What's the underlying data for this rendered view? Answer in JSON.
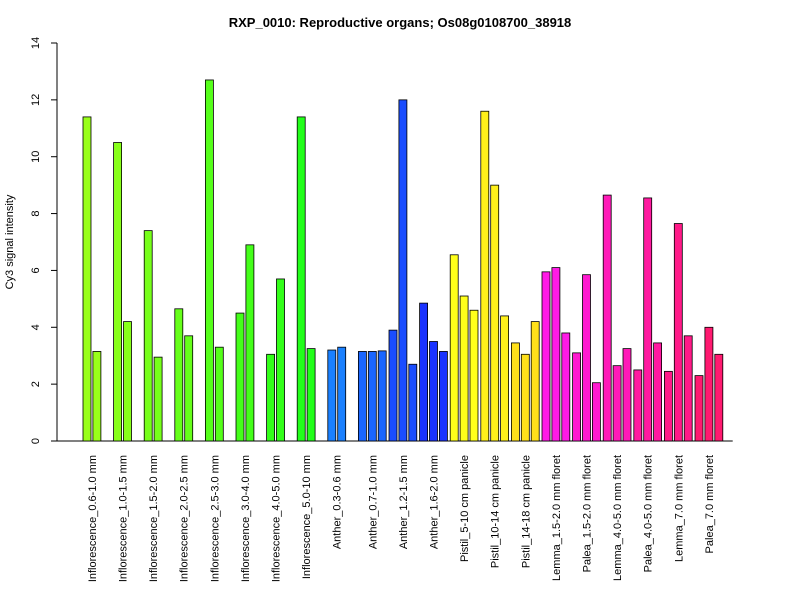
{
  "chart_data": {
    "type": "bar",
    "title": "RXP_0010: Reproductive organs; Os08g0108700_38918",
    "ylabel": "Cy3 signal intensity",
    "xlabel": "",
    "ylim": [
      0,
      14
    ],
    "yticks": [
      0,
      2,
      4,
      6,
      8,
      10,
      12,
      14
    ],
    "grid": false,
    "legend": "none",
    "groups": [
      {
        "label": "Inflorescence_0.6-1.0 mm",
        "color": "#99FF1A",
        "values": [
          11.4,
          3.15
        ]
      },
      {
        "label": "Inflorescence_1.0-1.5 mm",
        "color": "#88FF1A",
        "values": [
          10.5,
          4.2
        ]
      },
      {
        "label": "Inflorescence_1.5-2.0 mm",
        "color": "#77FF1A",
        "values": [
          7.4,
          2.95
        ]
      },
      {
        "label": "Inflorescence_2.0-2.5 mm",
        "color": "#66FF1A",
        "values": [
          4.65,
          3.7
        ]
      },
      {
        "label": "Inflorescence_2.5-3.0 mm",
        "color": "#55FF1A",
        "values": [
          12.7,
          3.3
        ]
      },
      {
        "label": "Inflorescence_3.0-4.0 mm",
        "color": "#44FF1A",
        "values": [
          4.5,
          6.9
        ]
      },
      {
        "label": "Inflorescence_4.0-5.0 mm",
        "color": "#33FF1A",
        "values": [
          3.05,
          5.7
        ]
      },
      {
        "label": "Inflorescence_5.0-10 mm",
        "color": "#22FF1A",
        "values": [
          11.4,
          3.25
        ]
      },
      {
        "label": "Anther_0.3-0.6 mm",
        "color": "#1A80FF",
        "values": [
          3.2,
          3.3
        ]
      },
      {
        "label": "Anther_0.7-1.0 mm",
        "color": "#1A66FF",
        "values": [
          3.15,
          3.15,
          3.17
        ]
      },
      {
        "label": "Anther_1.2-1.5 mm",
        "color": "#1A4DFF",
        "values": [
          3.9,
          12.0,
          2.7
        ]
      },
      {
        "label": "Anther_1.6-2.0 mm",
        "color": "#1A33FF",
        "values": [
          4.85,
          3.5,
          3.15
        ]
      },
      {
        "label": "Pistil_5-10 cm panicle",
        "color": "#FFFF1A",
        "values": [
          6.55,
          5.1,
          4.6
        ]
      },
      {
        "label": "Pistil_10-14 cm panicle",
        "color": "#FFF01A",
        "values": [
          11.6,
          9.0,
          4.4
        ]
      },
      {
        "label": "Pistil_14-18 cm panicle",
        "color": "#FFE01A",
        "values": [
          3.45,
          3.05,
          4.2
        ]
      },
      {
        "label": "Lemma_1.5-2.0 mm floret",
        "color": "#FF1AE6",
        "values": [
          5.95,
          6.1,
          3.8
        ]
      },
      {
        "label": "Palea_1.5-2.0 mm floret",
        "color": "#FF1AD0",
        "values": [
          3.1,
          5.85,
          2.05
        ]
      },
      {
        "label": "Lemma_4.0-5.0 mm floret",
        "color": "#FF1AB8",
        "values": [
          8.65,
          2.65,
          3.25
        ]
      },
      {
        "label": "Palea_4.0-5.0 mm floret",
        "color": "#FF1AA0",
        "values": [
          2.5,
          8.55,
          3.45
        ]
      },
      {
        "label": "Lemma_7.0 mm floret",
        "color": "#FF1A88",
        "values": [
          2.45,
          7.65,
          3.7
        ]
      },
      {
        "label": "Palea_7.0 mm floret",
        "color": "#FF1A70",
        "values": [
          2.3,
          4.0,
          3.05
        ]
      }
    ]
  }
}
